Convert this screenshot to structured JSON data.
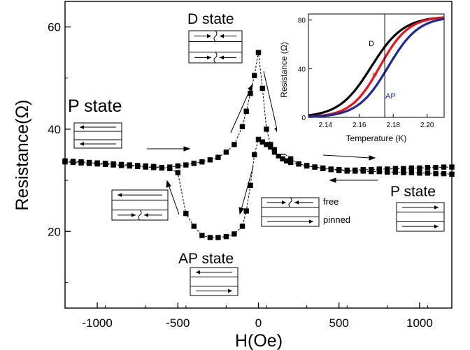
{
  "chart_data": [
    {
      "type": "scatter",
      "title": "",
      "xlabel": "H(Oe)",
      "ylabel": "Resistance(Ω)",
      "xlim": [
        -1200,
        1200
      ],
      "ylim": [
        5,
        65
      ],
      "xticks": [
        -1000,
        -500,
        0,
        500,
        1000
      ],
      "yticks": [
        20,
        40,
        60
      ],
      "grid": false,
      "series": [
        {
          "direction": "increasing field",
          "x": [
            -1200,
            -1150,
            -1100,
            -1050,
            -1000,
            -950,
            -900,
            -850,
            -800,
            -750,
            -700,
            -650,
            -600,
            -550,
            -500,
            -450,
            -400,
            -350,
            -300,
            -250,
            -200,
            -150,
            -100,
            -75,
            -50,
            -25,
            0,
            25,
            50,
            75,
            100,
            125,
            150,
            175,
            200,
            250,
            300,
            350,
            400,
            450,
            500,
            550,
            600,
            650,
            700,
            750,
            800,
            850,
            900,
            950,
            1000,
            1050,
            1100,
            1150,
            1200
          ],
          "y": [
            33.6,
            33.5,
            33.4,
            33.3,
            33.2,
            33.1,
            33.0,
            32.9,
            32.8,
            32.7,
            32.6,
            32.5,
            32.4,
            32.6,
            32.8,
            33.0,
            33.3,
            33.6,
            34.0,
            34.5,
            35.5,
            37.0,
            40.5,
            43.5,
            47.0,
            50.5,
            55.0,
            48.0,
            40.0,
            37.0,
            35.5,
            34.8,
            34.2,
            33.8,
            33.5,
            33.2,
            32.9,
            32.6,
            32.3,
            32.1,
            31.9,
            31.8,
            31.8,
            31.8,
            31.7,
            31.7,
            31.6,
            31.6,
            31.5,
            31.5,
            31.4,
            31.4,
            31.3,
            31.3,
            31.2
          ]
        },
        {
          "direction": "decreasing field",
          "x": [
            1200,
            1150,
            1100,
            1050,
            1000,
            950,
            900,
            850,
            800,
            750,
            700,
            650,
            600,
            550,
            500,
            450,
            400,
            350,
            300,
            250,
            200,
            150,
            100,
            75,
            50,
            25,
            0,
            -25,
            -50,
            -75,
            -100,
            -150,
            -200,
            -250,
            -300,
            -350,
            -400,
            -450,
            -500,
            -550,
            -600,
            -650,
            -700,
            -750,
            -800,
            -850,
            -900,
            -950,
            -1000,
            -1050,
            -1100,
            -1150,
            -1200
          ],
          "y": [
            32.6,
            32.6,
            32.5,
            32.5,
            32.4,
            32.4,
            32.3,
            32.3,
            32.2,
            32.2,
            32.1,
            32.1,
            32.0,
            32.0,
            32.1,
            32.2,
            32.4,
            32.6,
            32.8,
            33.2,
            34.2,
            35.5,
            36.0,
            36.5,
            37.0,
            37.5,
            38.0,
            35.0,
            29.0,
            24.0,
            21.0,
            19.5,
            19.0,
            18.8,
            18.8,
            19.2,
            21.0,
            23.5,
            31.5,
            32.3,
            32.5,
            32.7,
            32.8,
            32.9,
            33.0,
            33.1,
            33.2,
            33.3,
            33.4,
            33.5,
            33.6,
            33.7,
            33.8
          ]
        }
      ],
      "annotations": {
        "p_state_left": "P state",
        "d_state": "D state",
        "ap_state": "AP state",
        "p_state_right": "P state",
        "free": "free",
        "pinned": "pinned"
      }
    },
    {
      "type": "line",
      "title": "",
      "xlabel": "Temperature (K)",
      "ylabel": "Resistance (Ω)",
      "xlim": [
        2.13,
        2.21
      ],
      "ylim": [
        0,
        85
      ],
      "xticks": [
        2.14,
        2.16,
        2.18,
        2.2
      ],
      "xtick_labels": [
        "2.14",
        "2.16",
        "2.18",
        "2.20"
      ],
      "yticks": [
        0,
        40,
        80
      ],
      "vertical_line_x": 2.175,
      "series": [
        {
          "name": "D",
          "color": "#000000",
          "tc": 2.167,
          "width": 0.0095
        },
        {
          "name": "P",
          "color": "#e8141a",
          "tc": 2.172,
          "width": 0.0085
        },
        {
          "name": "AP",
          "color": "#1a2a9c",
          "tc": 2.177,
          "width": 0.009
        }
      ],
      "rmax": 83
    }
  ]
}
